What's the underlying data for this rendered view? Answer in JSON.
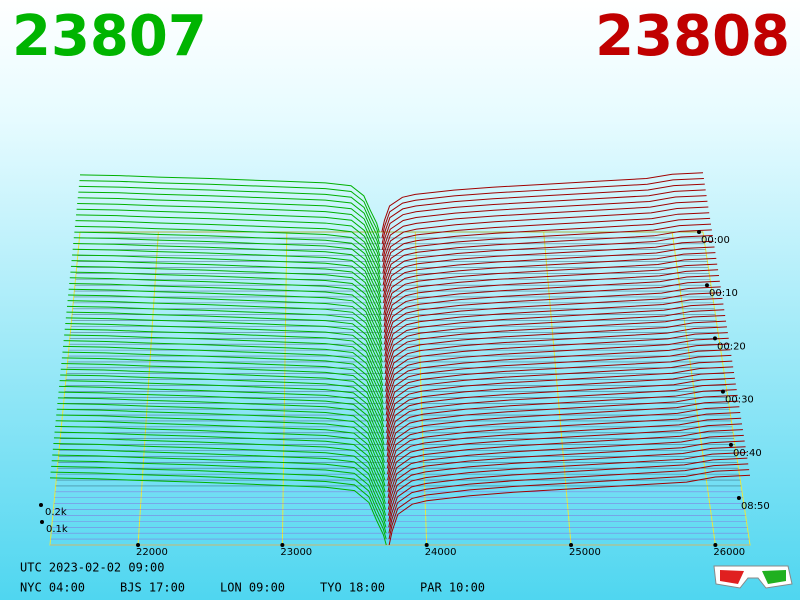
{
  "header": {
    "bid": "23807",
    "ask": "23808"
  },
  "chart_data": {
    "type": "depth3d",
    "bids": {
      "color": "#00b000",
      "prices": [
        23720,
        23700,
        23650,
        23600,
        23500,
        23300,
        23000,
        22700,
        22400,
        22000,
        21700,
        21390
      ],
      "depth": [
        0,
        60,
        150,
        250,
        320,
        340,
        350,
        360,
        370,
        380,
        390,
        395
      ]
    },
    "asks": {
      "color": "#a00000",
      "prices": [
        23740,
        23760,
        23800,
        23900,
        24000,
        24300,
        24600,
        25000,
        25400,
        25800,
        26000,
        26240
      ],
      "depth": [
        0,
        80,
        180,
        240,
        260,
        290,
        310,
        330,
        350,
        370,
        400,
        410
      ]
    },
    "xlim": [
      21390,
      26240
    ],
    "xticks": [
      22000,
      23000,
      24000,
      25000,
      26000
    ],
    "zticks": [
      {
        "value": 100,
        "label": "0.1k"
      },
      {
        "value": 200,
        "label": "0.2k"
      }
    ],
    "times": [
      "00:00",
      "00:10",
      "00:20",
      "00:30",
      "00:40",
      "08:50"
    ]
  },
  "clock": {
    "utc": "UTC 2023-02-02 09:00",
    "zones": [
      "NYC 04:00",
      "BJS 17:00",
      "LON 09:00",
      "TYO 18:00",
      "PAR 10:00"
    ]
  }
}
